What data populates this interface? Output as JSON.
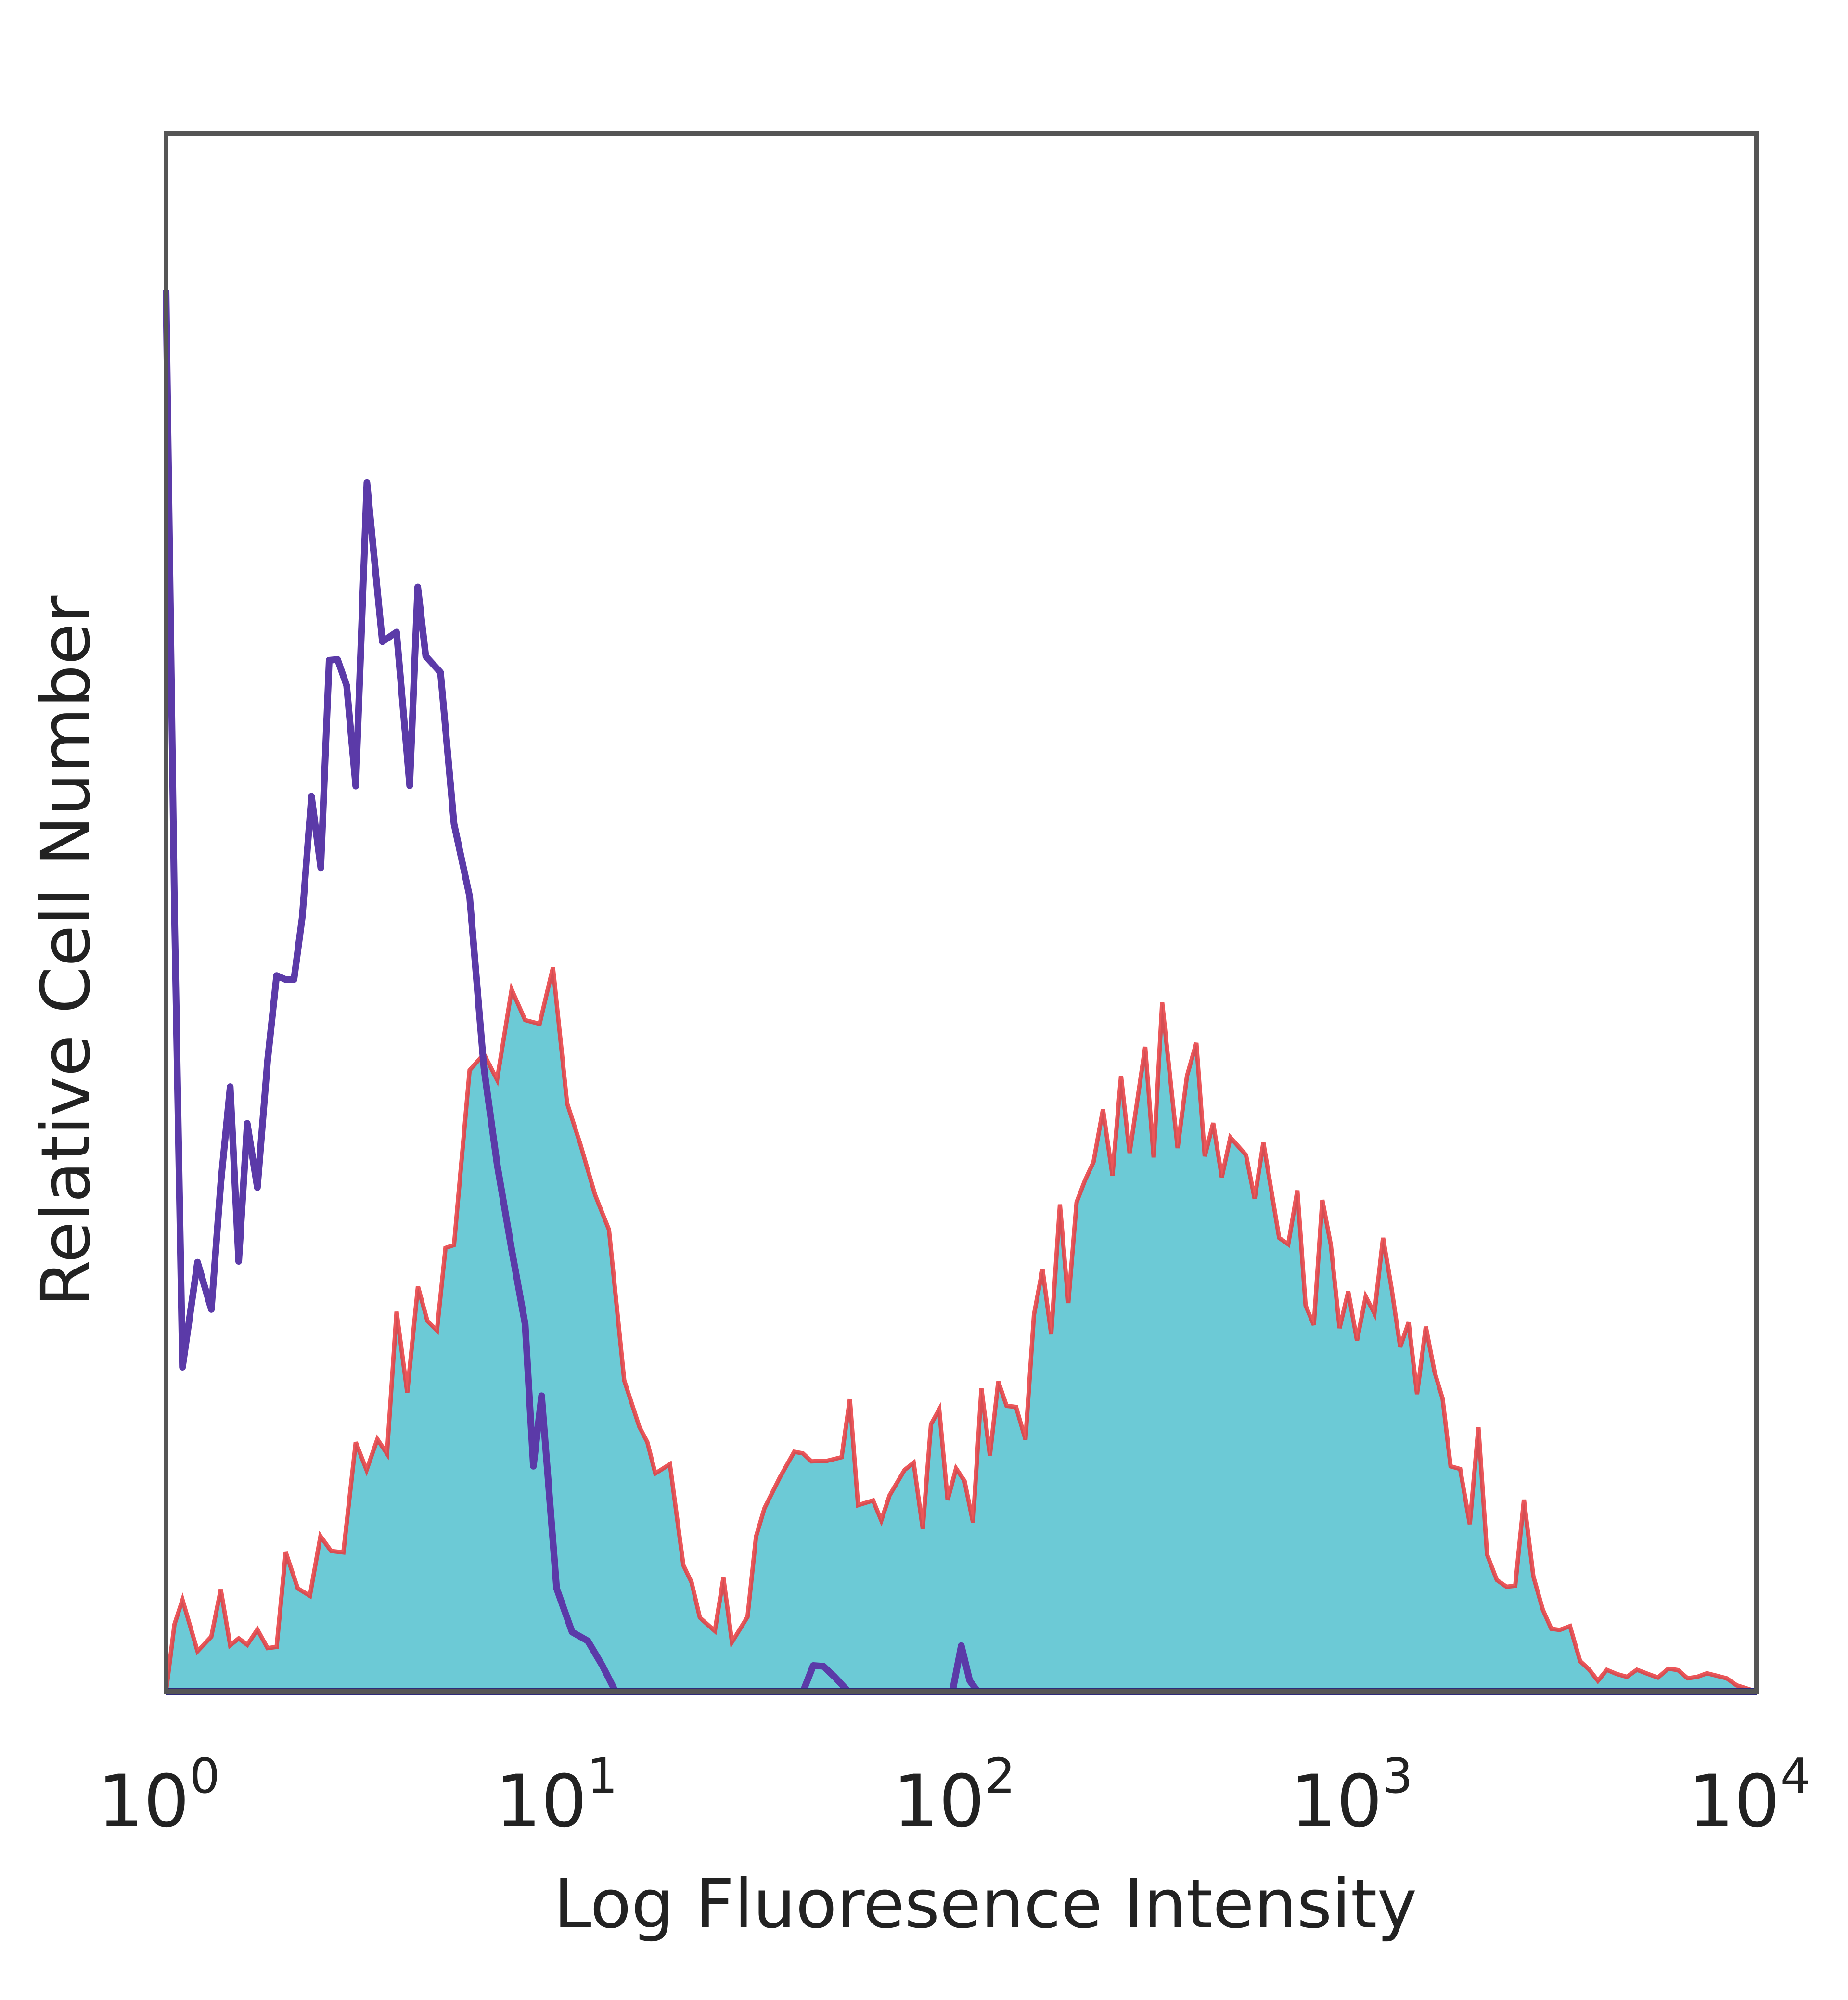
{
  "chart_data": {
    "type": "area",
    "title": "",
    "xlabel": "Log Fluoresence Intensity",
    "ylabel": "Relative Cell Number",
    "x_scale": "log",
    "xlim": [
      1,
      10000
    ],
    "ylim": [
      0,
      100
    ],
    "grid": false,
    "legend": "none",
    "x_ticks": [
      {
        "base": "10",
        "exp": "0"
      },
      {
        "base": "10",
        "exp": "1"
      },
      {
        "base": "10",
        "exp": "2"
      },
      {
        "base": "10",
        "exp": "3"
      },
      {
        "base": "10",
        "exp": "4"
      }
    ],
    "series": [
      {
        "style": "line",
        "color": "#5b3aa8",
        "x": [
          1.0,
          1.05,
          1.1,
          1.2,
          1.3,
          1.45,
          1.6,
          1.8,
          2.0,
          2.2,
          2.45,
          2.7,
          3.0,
          3.2,
          3.5,
          3.8,
          4.1,
          4.5,
          4.9,
          5.3,
          5.8,
          6.3,
          6.8,
          7.4,
          8.0,
          8.8,
          9.6,
          10.5,
          11.5,
          12.5,
          13.5,
          15.0,
          40.0,
          45.0,
          48.0,
          52.0,
          95.0,
          100.0,
          105.0,
          110.0,
          10000.0
        ],
        "y": [
          95,
          55,
          26,
          33,
          30,
          34,
          31,
          39,
          47,
          52,
          58,
          64,
          61,
          75,
          67,
          68,
          61,
          70,
          64,
          56,
          49,
          42,
          35,
          29,
          21,
          15,
          9,
          6,
          4,
          2,
          0,
          0,
          0,
          2,
          1,
          0,
          0,
          2,
          1,
          0,
          0
        ]
      },
      {
        "style": "filled",
        "color": "#6ccad6",
        "stroke": "#e8383c",
        "x": [
          1.0,
          1.05,
          1.1,
          1.2,
          1.3,
          1.45,
          1.6,
          1.8,
          2.0,
          2.3,
          2.6,
          3.0,
          3.4,
          3.8,
          4.3,
          4.8,
          5.3,
          5.8,
          6.3,
          6.8,
          7.4,
          8.0,
          8.7,
          9.4,
          10.2,
          11.0,
          12.0,
          13.0,
          14.2,
          15.5,
          17.0,
          18.5,
          20.0,
          22.0,
          24.0,
          26.5,
          29.0,
          32.0,
          35.0,
          38.0,
          42.0,
          46.0,
          50.0,
          55.0,
          60.0,
          66.0,
          72.0,
          80.0,
          88.0,
          97.0,
          107.0,
          118.0,
          130.0,
          145.0,
          160.0,
          177.0,
          195.0,
          215.0,
          240.0,
          265.0,
          290.0,
          320.0,
          350.0,
          390.0,
          430.0,
          475.0,
          520.0,
          575.0,
          630.0,
          700.0,
          770.0,
          850.0,
          940.0,
          1040.0,
          1150.0,
          1270.0,
          1400.0,
          1550.0,
          1700.0,
          1900.0,
          2100.0,
          2350.0,
          2600.0,
          2900.0,
          3200.0,
          3600.0,
          4200.0,
          5000.0,
          6000.0,
          7500.0,
          10000.0
        ],
        "y": [
          0,
          3,
          4,
          5,
          4,
          5,
          3,
          4,
          6,
          9,
          11,
          14,
          18,
          21,
          23,
          26,
          30,
          38,
          40,
          43,
          48,
          44,
          47,
          42,
          39,
          34,
          31,
          26,
          22,
          18,
          15,
          12,
          9,
          7,
          6,
          6,
          7,
          9,
          10,
          12,
          13,
          14,
          15,
          14,
          14,
          14,
          13,
          13,
          14,
          14,
          15,
          16,
          18,
          20,
          24,
          27,
          30,
          33,
          36,
          38,
          37,
          40,
          35,
          39,
          37,
          38,
          35,
          37,
          32,
          30,
          27,
          28,
          27,
          26,
          25,
          23,
          21,
          19,
          17,
          15,
          13,
          10,
          8,
          6,
          4,
          2,
          1,
          1,
          1,
          1,
          0
        ]
      }
    ]
  }
}
